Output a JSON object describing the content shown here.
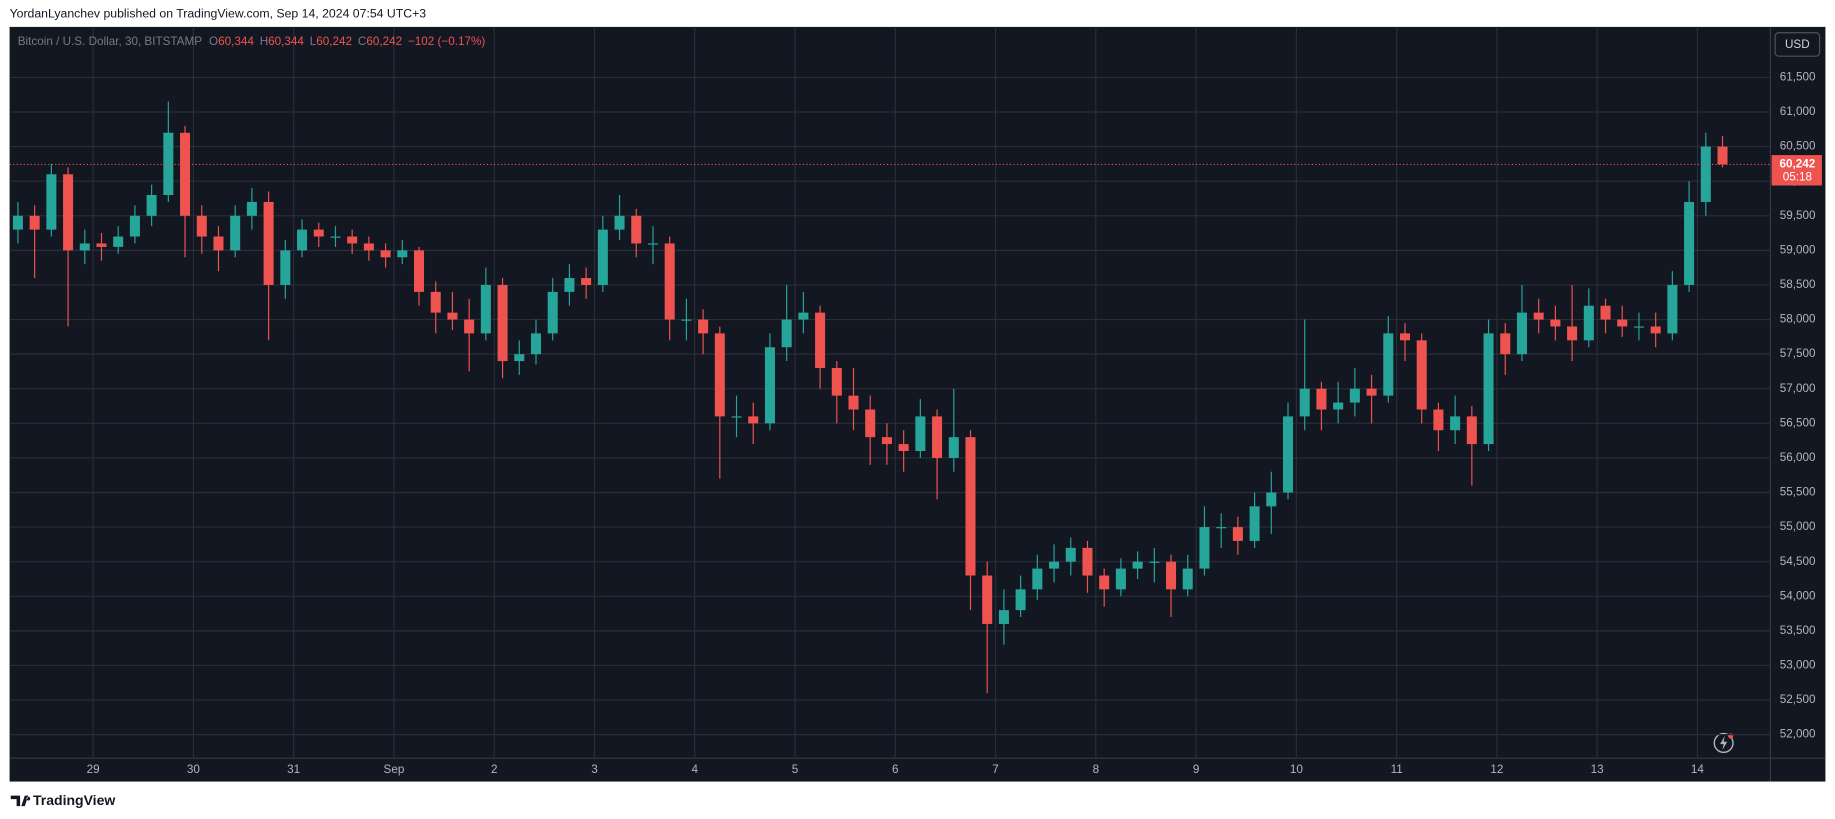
{
  "header": {
    "publisher": "YordanLyanchev published on TradingView.com, Sep 14, 2024 07:54 UTC+3"
  },
  "footer": {
    "brand": "TradingView"
  },
  "chart_data": {
    "type": "candlestick",
    "legend": {
      "symbol": "Bitcoin / U.S. Dollar, 30, BITSTAMP",
      "items": [
        {
          "key": "O",
          "text": "60,344"
        },
        {
          "key": "H",
          "text": "60,344"
        },
        {
          "key": "L",
          "text": "60,242"
        },
        {
          "key": "C",
          "text": "60,242"
        }
      ],
      "change": "−102 (−0.17%)"
    },
    "currency": "USD",
    "last_price": {
      "value": 60242,
      "label": "60,242"
    },
    "countdown": "05:18",
    "up_color": "#26a69a",
    "down_color": "#ef5350",
    "grid": true,
    "ylim": [
      51660,
      62230
    ],
    "yticks": [
      {
        "value": 52000,
        "label": "52,000"
      },
      {
        "value": 52500,
        "label": "52,500"
      },
      {
        "value": 53000,
        "label": "53,000"
      },
      {
        "value": 53500,
        "label": "53,500"
      },
      {
        "value": 54000,
        "label": "54,000"
      },
      {
        "value": 54500,
        "label": "54,500"
      },
      {
        "value": 55000,
        "label": "55,000"
      },
      {
        "value": 55500,
        "label": "55,500"
      },
      {
        "value": 56000,
        "label": "56,000"
      },
      {
        "value": 56500,
        "label": "56,500"
      },
      {
        "value": 57000,
        "label": "57,000"
      },
      {
        "value": 57500,
        "label": "57,500"
      },
      {
        "value": 58000,
        "label": "58,000"
      },
      {
        "value": 58500,
        "label": "58,500"
      },
      {
        "value": 59000,
        "label": "59,000"
      },
      {
        "value": 59500,
        "label": "59,500"
      },
      {
        "value": 60000,
        "label": "60,000"
      },
      {
        "value": 60500,
        "label": "60,500"
      },
      {
        "value": 61000,
        "label": "61,000"
      },
      {
        "value": 61500,
        "label": "61,500"
      }
    ],
    "categories": [
      null,
      null,
      null,
      null,
      null,
      "29",
      null,
      null,
      null,
      null,
      null,
      "30",
      null,
      null,
      null,
      null,
      null,
      "31",
      null,
      null,
      null,
      null,
      null,
      "Sep",
      null,
      null,
      null,
      null,
      null,
      "2",
      null,
      null,
      null,
      null,
      null,
      "3",
      null,
      null,
      null,
      null,
      null,
      "4",
      null,
      null,
      null,
      null,
      null,
      "5",
      null,
      null,
      null,
      null,
      null,
      "6",
      null,
      null,
      null,
      null,
      null,
      "7",
      null,
      null,
      null,
      null,
      null,
      "8",
      null,
      null,
      null,
      null,
      null,
      "9",
      null,
      null,
      null,
      null,
      null,
      "10",
      null,
      null,
      null,
      null,
      null,
      "11",
      null,
      null,
      null,
      null,
      null,
      "12",
      null,
      null,
      null,
      null,
      null,
      "13",
      null,
      null,
      null,
      null,
      null,
      "14",
      null
    ],
    "open": [
      59300,
      59500,
      59300,
      60100,
      59000,
      59100,
      59050,
      59200,
      59500,
      59800,
      60700,
      59500,
      59200,
      59000,
      59500,
      59700,
      58500,
      59000,
      59300,
      59200,
      59200,
      59100,
      59000,
      58900,
      59000,
      58400,
      58100,
      58000,
      57800,
      58500,
      57400,
      57500,
      57800,
      58400,
      58600,
      58500,
      59300,
      59500,
      59100,
      59100,
      58000,
      58000,
      57800,
      56600,
      56600,
      56500,
      57600,
      58000,
      58100,
      57300,
      56900,
      56700,
      56300,
      56200,
      56100,
      56600,
      56000,
      56300,
      54300,
      53600,
      53800,
      54100,
      54400,
      54500,
      54700,
      54300,
      54100,
      54400,
      54500,
      54500,
      54100,
      54400,
      55000,
      55000,
      54800,
      55300,
      55500,
      56600,
      57000,
      56700,
      56800,
      57000,
      56900,
      57800,
      57700,
      56700,
      56400,
      56600,
      56200,
      57800,
      57500,
      58100,
      58000,
      57900,
      57700,
      58200,
      58000,
      57900,
      57900,
      57800,
      58500,
      59700,
      60500
    ],
    "high": [
      59700,
      59650,
      60250,
      60200,
      59300,
      59250,
      59350,
      59650,
      59950,
      61150,
      60800,
      59650,
      59350,
      59650,
      59900,
      59850,
      59150,
      59450,
      59400,
      59350,
      59300,
      59200,
      59100,
      59150,
      59050,
      58550,
      58400,
      58300,
      58750,
      58600,
      57700,
      58000,
      58600,
      58800,
      58750,
      59500,
      59800,
      59600,
      59350,
      59200,
      58300,
      58150,
      57900,
      56900,
      56800,
      57800,
      58500,
      58400,
      58200,
      57400,
      57300,
      56900,
      56500,
      56400,
      56850,
      56700,
      57000,
      56400,
      54500,
      54100,
      54300,
      54600,
      54750,
      54850,
      54800,
      54400,
      54550,
      54650,
      54700,
      54600,
      54600,
      55300,
      55200,
      55150,
      55500,
      55800,
      56800,
      58000,
      57100,
      57100,
      57300,
      57200,
      58050,
      57950,
      57800,
      56800,
      56900,
      56750,
      58000,
      57950,
      58500,
      58300,
      58200,
      58500,
      58450,
      58300,
      58200,
      58100,
      58100,
      58700,
      60000,
      60700,
      60650
    ],
    "low": [
      59100,
      58600,
      59200,
      57900,
      58800,
      58850,
      58950,
      59100,
      59350,
      59700,
      58900,
      58950,
      58700,
      58900,
      59300,
      57700,
      58300,
      58900,
      59050,
      59050,
      58950,
      58850,
      58750,
      58800,
      58200,
      57800,
      57850,
      57250,
      57700,
      57150,
      57200,
      57350,
      57700,
      58200,
      58300,
      58400,
      59150,
      58900,
      58800,
      57700,
      57700,
      57500,
      55700,
      56300,
      56200,
      56400,
      57400,
      57800,
      57000,
      56500,
      56400,
      55900,
      55900,
      55800,
      56000,
      55400,
      55800,
      53800,
      52600,
      53300,
      53700,
      53950,
      54200,
      54300,
      54050,
      53850,
      54000,
      54250,
      54200,
      53700,
      54000,
      54300,
      54700,
      54600,
      54700,
      54900,
      55400,
      56400,
      56400,
      56500,
      56600,
      56500,
      56800,
      57400,
      56500,
      56100,
      56200,
      55600,
      56100,
      57200,
      57400,
      57800,
      57700,
      57400,
      57600,
      57800,
      57750,
      57700,
      57600,
      57700,
      58400,
      59500,
      60200
    ],
    "close": [
      59500,
      59300,
      60100,
      59000,
      59100,
      59050,
      59200,
      59500,
      59800,
      60700,
      59500,
      59200,
      59000,
      59500,
      59700,
      58500,
      59000,
      59300,
      59200,
      59200,
      59100,
      59000,
      58900,
      59000,
      58400,
      58100,
      58000,
      57800,
      58500,
      57400,
      57500,
      57800,
      58400,
      58600,
      58500,
      59300,
      59500,
      59100,
      59100,
      58000,
      58000,
      57800,
      56600,
      56600,
      56500,
      57600,
      58000,
      58100,
      57300,
      56900,
      56700,
      56300,
      56200,
      56100,
      56600,
      56000,
      56300,
      54300,
      53600,
      53800,
      54100,
      54400,
      54500,
      54700,
      54300,
      54100,
      54400,
      54500,
      54500,
      54100,
      54400,
      55000,
      55000,
      54800,
      55300,
      55500,
      56600,
      57000,
      56700,
      56800,
      57000,
      56900,
      57800,
      57700,
      56700,
      56400,
      56600,
      56200,
      57800,
      57500,
      58100,
      58000,
      57900,
      57700,
      58200,
      58000,
      57900,
      57900,
      57800,
      58500,
      59700,
      60500,
      60242
    ]
  }
}
